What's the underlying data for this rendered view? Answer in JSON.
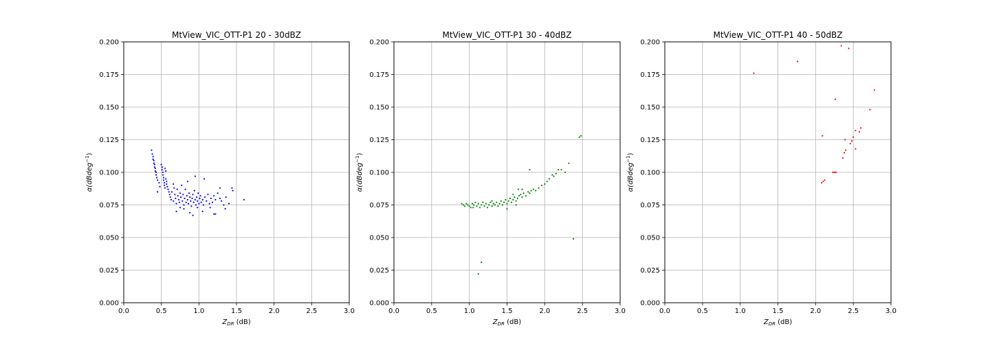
{
  "chart_data": [
    {
      "type": "scatter",
      "title": "MtView_VIC_OTT-P1 20 - 30dBZ",
      "xlabel_main": "Z",
      "xlabel_sub": "DR",
      "xlabel_unit": " (dB)",
      "ylabel_main": "α(dBdeg",
      "ylabel_sup": "−1",
      "ylabel_close": ")",
      "xlim": [
        0,
        3.0
      ],
      "ylim": [
        0,
        0.2
      ],
      "xticks": [
        "0.0",
        "0.5",
        "1.0",
        "1.5",
        "2.0",
        "2.5",
        "3.0"
      ],
      "yticks": [
        "0.000",
        "0.025",
        "0.050",
        "0.075",
        "0.100",
        "0.125",
        "0.150",
        "0.175",
        "0.200"
      ],
      "grid": true,
      "color": "#0000ff",
      "points": [
        [
          0.37,
          0.117
        ],
        [
          0.38,
          0.114
        ],
        [
          0.39,
          0.112
        ],
        [
          0.39,
          0.11
        ],
        [
          0.4,
          0.109
        ],
        [
          0.4,
          0.107
        ],
        [
          0.41,
          0.106
        ],
        [
          0.41,
          0.104
        ],
        [
          0.42,
          0.103
        ],
        [
          0.42,
          0.101
        ],
        [
          0.43,
          0.1
        ],
        [
          0.43,
          0.098
        ],
        [
          0.44,
          0.096
        ],
        [
          0.45,
          0.094
        ],
        [
          0.45,
          0.085
        ],
        [
          0.47,
          0.092
        ],
        [
          0.48,
          0.089
        ],
        [
          0.5,
          0.106
        ],
        [
          0.51,
          0.104
        ],
        [
          0.51,
          0.102
        ],
        [
          0.52,
          0.1
        ],
        [
          0.52,
          0.098
        ],
        [
          0.53,
          0.096
        ],
        [
          0.53,
          0.094
        ],
        [
          0.54,
          0.092
        ],
        [
          0.54,
          0.09
        ],
        [
          0.55,
          0.088
        ],
        [
          0.55,
          0.103
        ],
        [
          0.56,
          0.101
        ],
        [
          0.56,
          0.095
        ],
        [
          0.57,
          0.093
        ],
        [
          0.57,
          0.091
        ],
        [
          0.58,
          0.089
        ],
        [
          0.59,
          0.087
        ],
        [
          0.6,
          0.085
        ],
        [
          0.61,
          0.083
        ],
        [
          0.62,
          0.081
        ],
        [
          0.63,
          0.079
        ],
        [
          0.64,
          0.085
        ],
        [
          0.66,
          0.078
        ],
        [
          0.67,
          0.088
        ],
        [
          0.68,
          0.083
        ],
        [
          0.69,
          0.08
        ],
        [
          0.7,
          0.076
        ],
        [
          0.71,
          0.087
        ],
        [
          0.72,
          0.082
        ],
        [
          0.73,
          0.079
        ],
        [
          0.74,
          0.077
        ],
        [
          0.75,
          0.084
        ],
        [
          0.76,
          0.081
        ],
        [
          0.77,
          0.09
        ],
        [
          0.78,
          0.078
        ],
        [
          0.79,
          0.083
        ],
        [
          0.8,
          0.075
        ],
        [
          0.81,
          0.08
        ],
        [
          0.82,
          0.087
        ],
        [
          0.83,
          0.077
        ],
        [
          0.84,
          0.082
        ],
        [
          0.85,
          0.079
        ],
        [
          0.86,
          0.076
        ],
        [
          0.87,
          0.084
        ],
        [
          0.88,
          0.081
        ],
        [
          0.89,
          0.078
        ],
        [
          0.9,
          0.074
        ],
        [
          0.91,
          0.08
        ],
        [
          0.92,
          0.083
        ],
        [
          0.93,
          0.077
        ],
        [
          0.94,
          0.086
        ],
        [
          0.95,
          0.079
        ],
        [
          0.96,
          0.075
        ],
        [
          0.97,
          0.081
        ],
        [
          0.98,
          0.078
        ],
        [
          0.99,
          0.084
        ],
        [
          1.0,
          0.076
        ],
        [
          1.01,
          0.08
        ],
        [
          1.02,
          0.082
        ],
        [
          1.03,
          0.077
        ],
        [
          1.05,
          0.079
        ],
        [
          1.06,
          0.075
        ],
        [
          1.08,
          0.081
        ],
        [
          1.1,
          0.078
        ],
        [
          1.12,
          0.083
        ],
        [
          1.14,
          0.076
        ],
        [
          1.16,
          0.08
        ],
        [
          1.18,
          0.077
        ],
        [
          1.2,
          0.082
        ],
        [
          1.22,
          0.079
        ],
        [
          1.25,
          0.084
        ],
        [
          1.28,
          0.08
        ],
        [
          1.3,
          0.078
        ],
        [
          1.33,
          0.075
        ],
        [
          1.36,
          0.081
        ],
        [
          1.4,
          0.076
        ],
        [
          1.44,
          0.088
        ],
        [
          1.45,
          0.086
        ],
        [
          1.6,
          0.079
        ],
        [
          0.7,
          0.07
        ],
        [
          0.8,
          0.072
        ],
        [
          0.88,
          0.069
        ],
        [
          0.92,
          0.067
        ],
        [
          0.95,
          0.097
        ],
        [
          1.07,
          0.095
        ],
        [
          1.05,
          0.07
        ],
        [
          1.2,
          0.068
        ],
        [
          1.22,
          0.068
        ],
        [
          1.28,
          0.088
        ],
        [
          0.66,
          0.091
        ],
        [
          0.75,
          0.073
        ],
        [
          0.85,
          0.093
        ],
        [
          0.98,
          0.073
        ],
        [
          1.15,
          0.073
        ],
        [
          1.35,
          0.072
        ]
      ]
    },
    {
      "type": "scatter",
      "title": "MtView_VIC_OTT-P1 30 - 40dBZ",
      "xlabel_main": "Z",
      "xlabel_sub": "DR",
      "xlabel_unit": " (dB)",
      "ylabel_main": "α(dBdeg",
      "ylabel_sup": "−1",
      "ylabel_close": ")",
      "xlim": [
        0,
        3.0
      ],
      "ylim": [
        0,
        0.2
      ],
      "xticks": [
        "0.0",
        "0.5",
        "1.0",
        "1.5",
        "2.0",
        "2.5",
        "3.0"
      ],
      "yticks": [
        "0.000",
        "0.025",
        "0.050",
        "0.075",
        "0.100",
        "0.125",
        "0.150",
        "0.175",
        "0.200"
      ],
      "grid": true,
      "color": "#008000",
      "points": [
        [
          0.9,
          0.076
        ],
        [
          0.92,
          0.075
        ],
        [
          0.94,
          0.074
        ],
        [
          0.96,
          0.076
        ],
        [
          0.98,
          0.075
        ],
        [
          1.0,
          0.074
        ],
        [
          1.02,
          0.073
        ],
        [
          1.04,
          0.076
        ],
        [
          1.06,
          0.075
        ],
        [
          1.08,
          0.077
        ],
        [
          1.1,
          0.074
        ],
        [
          1.12,
          0.076
        ],
        [
          1.14,
          0.073
        ],
        [
          1.16,
          0.075
        ],
        [
          1.18,
          0.077
        ],
        [
          1.2,
          0.074
        ],
        [
          1.22,
          0.076
        ],
        [
          1.24,
          0.073
        ],
        [
          1.26,
          0.075
        ],
        [
          1.28,
          0.077
        ],
        [
          1.3,
          0.074
        ],
        [
          1.32,
          0.076
        ],
        [
          1.34,
          0.075
        ],
        [
          1.36,
          0.077
        ],
        [
          1.38,
          0.074
        ],
        [
          1.4,
          0.076
        ],
        [
          1.42,
          0.078
        ],
        [
          1.44,
          0.075
        ],
        [
          1.46,
          0.077
        ],
        [
          1.48,
          0.079
        ],
        [
          1.5,
          0.076
        ],
        [
          1.52,
          0.078
        ],
        [
          1.54,
          0.08
        ],
        [
          1.56,
          0.077
        ],
        [
          1.58,
          0.079
        ],
        [
          1.6,
          0.081
        ],
        [
          1.62,
          0.078
        ],
        [
          1.64,
          0.08
        ],
        [
          1.66,
          0.082
        ],
        [
          1.68,
          0.083
        ],
        [
          1.7,
          0.081
        ],
        [
          1.72,
          0.084
        ],
        [
          1.75,
          0.082
        ],
        [
          1.78,
          0.085
        ],
        [
          1.8,
          0.084
        ],
        [
          1.82,
          0.086
        ],
        [
          1.85,
          0.087
        ],
        [
          1.88,
          0.086
        ],
        [
          1.92,
          0.088
        ],
        [
          1.96,
          0.09
        ],
        [
          2.0,
          0.091
        ],
        [
          2.03,
          0.093
        ],
        [
          2.06,
          0.095
        ],
        [
          2.1,
          0.098
        ],
        [
          2.12,
          0.097
        ],
        [
          2.15,
          0.099
        ],
        [
          2.18,
          0.102
        ],
        [
          2.22,
          0.102
        ],
        [
          2.27,
          0.1
        ],
        [
          2.32,
          0.107
        ],
        [
          2.46,
          0.127
        ],
        [
          2.48,
          0.128
        ],
        [
          2.38,
          0.049
        ],
        [
          1.8,
          0.102
        ],
        [
          1.16,
          0.031
        ],
        [
          1.12,
          0.022
        ],
        [
          1.5,
          0.072
        ],
        [
          1.62,
          0.075
        ],
        [
          1.7,
          0.087
        ],
        [
          1.58,
          0.083
        ],
        [
          1.65,
          0.087
        ],
        [
          1.3,
          0.078
        ],
        [
          1.05,
          0.073
        ]
      ]
    },
    {
      "type": "scatter",
      "title": "MtView_VIC_OTT-P1 40 - 50dBZ",
      "xlabel_main": "Z",
      "xlabel_sub": "DR",
      "xlabel_unit": " (dB)",
      "ylabel_main": "α(dBdeg",
      "ylabel_sup": "−1",
      "ylabel_close": ")",
      "xlim": [
        0,
        3.0
      ],
      "ylim": [
        0,
        0.2
      ],
      "xticks": [
        "0.0",
        "0.5",
        "1.0",
        "1.5",
        "2.0",
        "2.5",
        "3.0"
      ],
      "yticks": [
        "0.000",
        "0.025",
        "0.050",
        "0.075",
        "0.100",
        "0.125",
        "0.150",
        "0.175",
        "0.200"
      ],
      "grid": true,
      "color": "#ff0000",
      "points": [
        [
          1.18,
          0.176
        ],
        [
          1.76,
          0.185
        ],
        [
          2.34,
          0.197
        ],
        [
          2.44,
          0.195
        ],
        [
          2.26,
          0.156
        ],
        [
          2.78,
          0.163
        ],
        [
          2.72,
          0.148
        ],
        [
          2.09,
          0.128
        ],
        [
          2.6,
          0.134
        ],
        [
          2.58,
          0.131
        ],
        [
          2.53,
          0.132
        ],
        [
          2.5,
          0.127
        ],
        [
          2.48,
          0.124
        ],
        [
          2.46,
          0.122
        ],
        [
          2.39,
          0.125
        ],
        [
          2.4,
          0.117
        ],
        [
          2.38,
          0.115
        ],
        [
          2.36,
          0.111
        ],
        [
          2.53,
          0.118
        ],
        [
          2.25,
          0.1
        ],
        [
          2.23,
          0.1
        ],
        [
          2.27,
          0.1
        ],
        [
          2.12,
          0.094
        ],
        [
          2.1,
          0.093
        ],
        [
          2.08,
          0.092
        ]
      ]
    }
  ]
}
